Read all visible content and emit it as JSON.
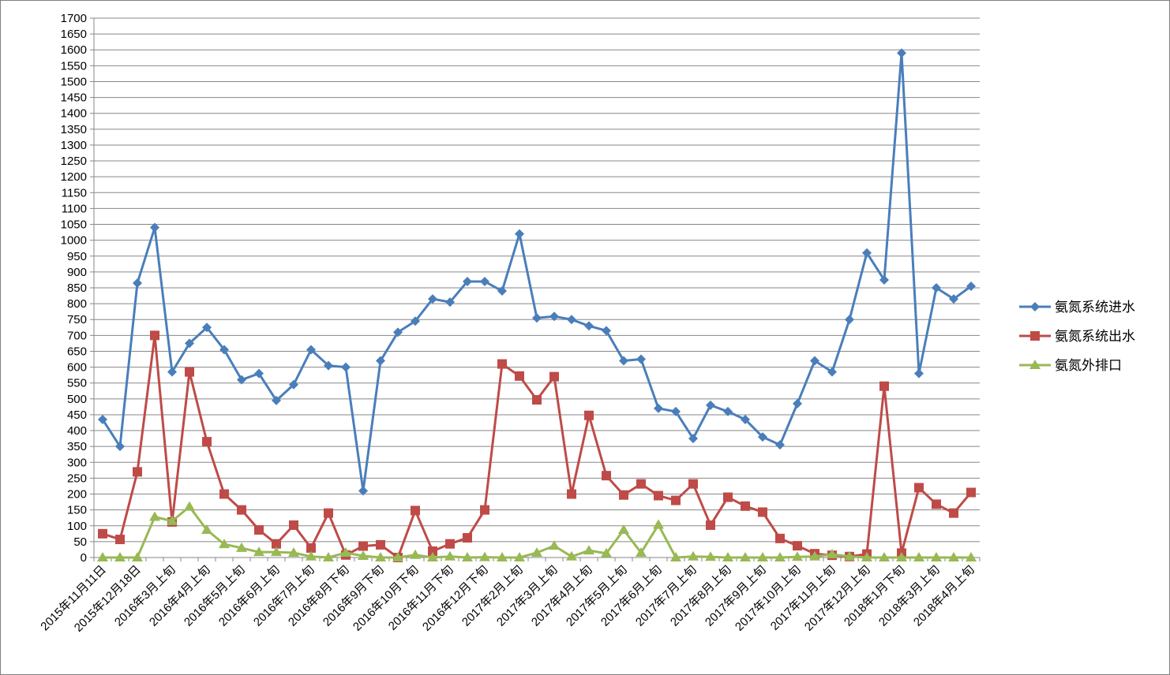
{
  "chart_data": {
    "type": "line",
    "title": "",
    "xlabel": "",
    "ylabel": "",
    "ylim": [
      0,
      1700
    ],
    "ytick_step": 50,
    "grid": true,
    "legend_position": "right",
    "categories": [
      "2015年11月11日",
      "",
      "2015年12月18日",
      "",
      "2016年3月上旬",
      "",
      "2016年4月上旬",
      "",
      "2016年5月上旬",
      "",
      "2016年6月上旬",
      "",
      "2016年7月上旬",
      "",
      "2016年8月下旬",
      "",
      "2016年9月下旬",
      "",
      "2016年10月下旬",
      "",
      "2016年11月下旬",
      "",
      "2016年12月下旬",
      "",
      "2017年2月上旬",
      "",
      "2017年3月上旬",
      "",
      "2017年4月上旬",
      "",
      "2017年5月上旬",
      "",
      "2017年6月上旬",
      "",
      "2017年7月上旬",
      "",
      "2017年8月上旬",
      "",
      "2017年9月上旬",
      "",
      "2017年10月上旬",
      "",
      "2017年11月上旬",
      "",
      "2017年12月上旬",
      "",
      "2018年1月下旬",
      "",
      "2018年3月上旬",
      "",
      "2018年4月上旬"
    ],
    "series": [
      {
        "name": "氨氮系统进水",
        "color": "#4a7ebb",
        "marker": "diamond",
        "values": [
          435,
          350,
          865,
          1040,
          585,
          675,
          725,
          655,
          560,
          580,
          495,
          545,
          655,
          605,
          600,
          210,
          620,
          710,
          745,
          815,
          805,
          870,
          870,
          840,
          1020,
          755,
          760,
          750,
          730,
          715,
          620,
          625,
          470,
          460,
          375,
          480,
          460,
          435,
          380,
          355,
          485,
          620,
          585,
          750,
          960,
          875,
          1590,
          580,
          850,
          815,
          855
        ]
      },
      {
        "name": "氨氮系统出水",
        "color": "#be4b48",
        "marker": "square",
        "values": [
          75,
          57,
          270,
          700,
          112,
          585,
          365,
          200,
          150,
          87,
          43,
          102,
          30,
          140,
          8,
          36,
          40,
          0,
          148,
          20,
          43,
          62,
          150,
          610,
          572,
          497,
          570,
          200,
          448,
          258,
          197,
          232,
          195,
          180,
          232,
          102,
          190,
          162,
          143,
          60,
          37,
          12,
          7,
          3,
          11,
          540,
          14,
          220,
          168,
          140,
          205
        ]
      },
      {
        "name": "氨氮外排口",
        "color": "#98b954",
        "marker": "triangle",
        "values": [
          0,
          0,
          0,
          128,
          115,
          160,
          87,
          42,
          30,
          17,
          17,
          15,
          3,
          0,
          15,
          5,
          0,
          0,
          8,
          0,
          3,
          0,
          1,
          0,
          0,
          15,
          37,
          3,
          22,
          13,
          87,
          15,
          103,
          0,
          3,
          2,
          0,
          0,
          0,
          0,
          2,
          3,
          10,
          3,
          0,
          0,
          0,
          0,
          0,
          0,
          0
        ]
      }
    ]
  }
}
